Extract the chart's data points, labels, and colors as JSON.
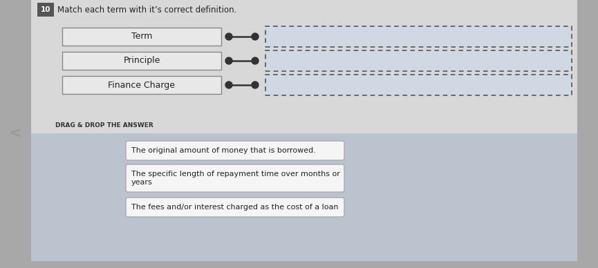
{
  "title": "Match each term with it’s correct definition.",
  "question_number": "10",
  "terms": [
    "Term",
    "Principle",
    "Finance Charge"
  ],
  "definitions": [
    "The original amount of money that is borrowed.",
    "The specific length of repayment time over months or\nyears",
    "The fees and/or interest charged as the cost of a loan"
  ],
  "drag_drop_label": "DRAG & DROP THE ANSWER",
  "outer_bg": "#a8a8a8",
  "card_bg": "#d8d8d8",
  "bottom_bg": "#bbc4ce",
  "term_box_fill": "#e8e8e8",
  "term_box_edge": "#888888",
  "drop_box_fill": "#d0d8e4",
  "drop_box_edge": "#555555",
  "connector_color": "#333333",
  "text_color": "#222222",
  "ans_box_fill": "#f5f5f5",
  "ans_box_edge": "#aaaaaa",
  "num_box_fill": "#555555",
  "num_box_text": "#ffffff",
  "drag_label_color": "#333333"
}
